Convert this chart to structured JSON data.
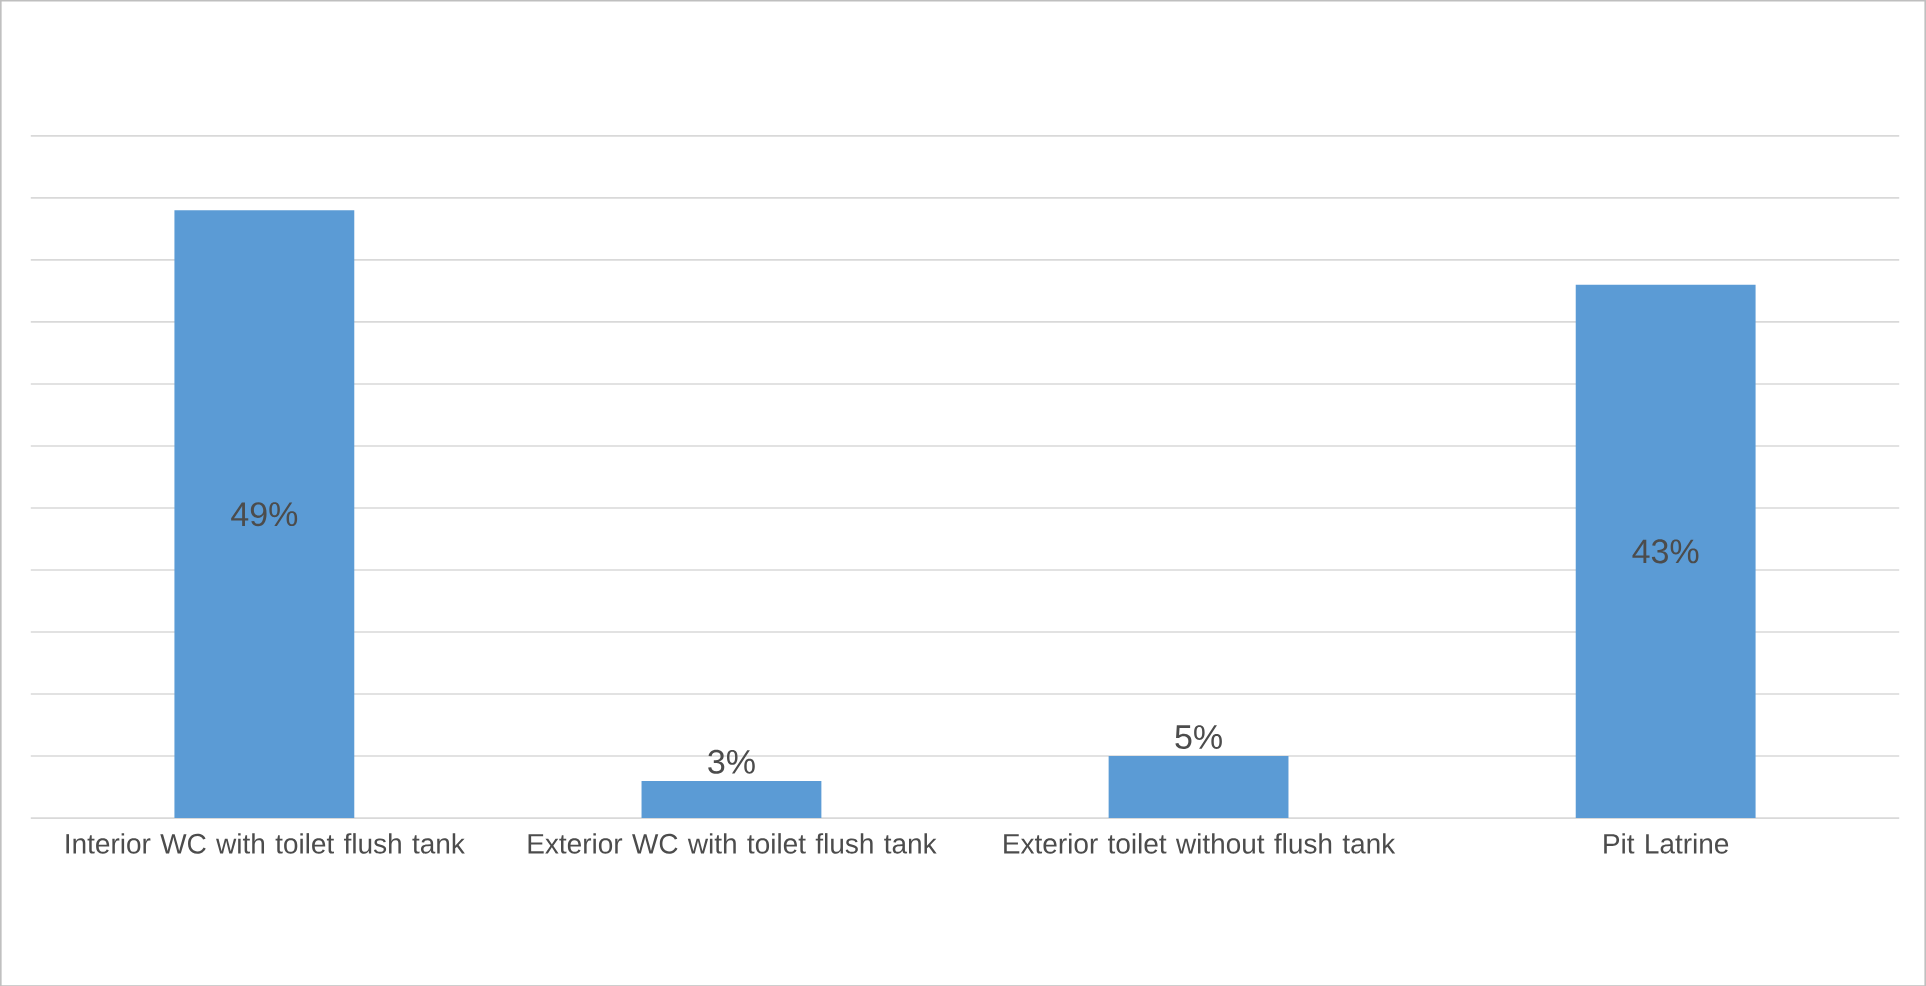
{
  "chart_data": {
    "type": "bar",
    "categories": [
      "Interior WC with toilet flush tank",
      "Exterior WC with toilet flush tank",
      "Exterior toilet without flush tank",
      "Pit Latrine"
    ],
    "values": [
      49,
      3,
      5,
      43
    ],
    "value_labels": [
      "49%",
      "3%",
      "5%",
      "43%"
    ],
    "color": "#5b9bd5",
    "grid": "y",
    "tick_labels": "x"
  }
}
